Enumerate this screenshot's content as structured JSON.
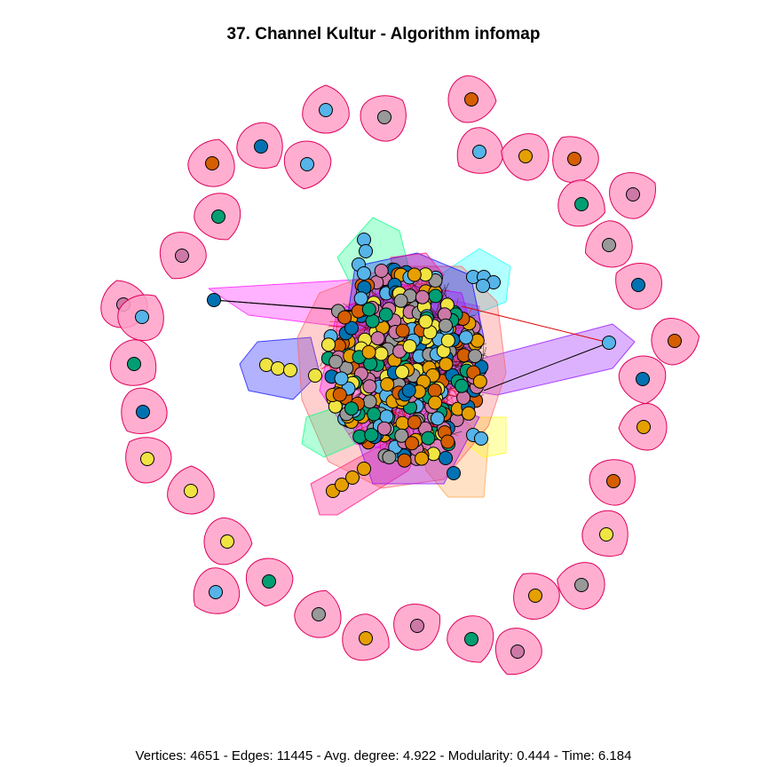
{
  "title": "37. Channel Kultur - Algorithm infomap",
  "stats": "Vertices: 4651 - Edges: 11445 - Avg. degree: 4.922 - Modularity: 0.444 - Time: 6.184",
  "metrics": {
    "vertices": 4651,
    "edges": 11445,
    "avg_degree": 4.922,
    "modularity": 0.444,
    "time": 6.184,
    "algorithm": "infomap"
  },
  "palette": {
    "node_colors": [
      "#E69F00",
      "#56B4E9",
      "#009E73",
      "#F0E442",
      "#0072B2",
      "#D55E00",
      "#CC79A7",
      "#999999"
    ],
    "hull_colors": [
      "#FF00FF",
      "#0000FF",
      "#8B00FF",
      "#FF0080",
      "#00FF80",
      "#00FFFF",
      "#FFA040",
      "#FFFF00",
      "#FF6060"
    ],
    "isolated_hull_fill": "#FFA0C8",
    "isolated_hull_stroke": "#E0005A",
    "edge_black": "#000000",
    "edge_red": "#E00000"
  }
}
